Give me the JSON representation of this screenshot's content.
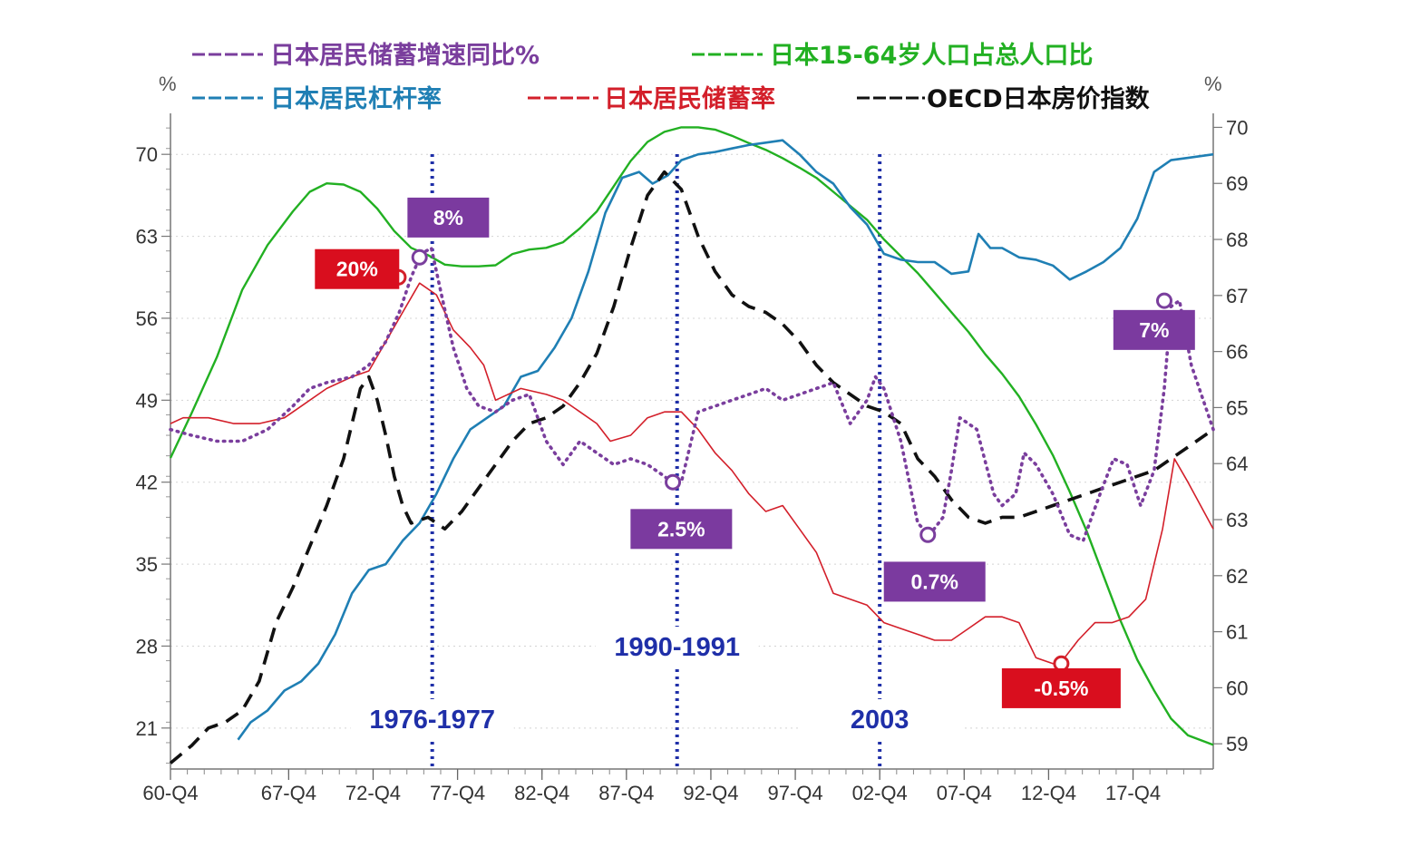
{
  "chart_data": {
    "type": "line",
    "title": "",
    "legend": [
      {
        "key": "savings_growth",
        "label": "日本居民储蓄增速同比%",
        "color": "#7a3e9d",
        "style": "dotted",
        "axis": "left"
      },
      {
        "key": "working_age",
        "label": "日本15-64岁人口占总人口比",
        "color": "#22b022",
        "style": "solid",
        "axis": "right"
      },
      {
        "key": "leverage",
        "label": "日本居民杠杆率",
        "color": "#1f7fb4",
        "style": "solid",
        "axis": "left"
      },
      {
        "key": "savings_rate",
        "label": "日本居民储蓄率",
        "color": "#d31f2a",
        "style": "solid",
        "axis": "left"
      },
      {
        "key": "house_price",
        "label": "OECD日本房价指数",
        "color": "#111111",
        "style": "dashed",
        "axis": "left"
      }
    ],
    "legend_placement": "top",
    "x_axis": {
      "start": 1960.75,
      "end": 2022.5,
      "tick_labels": [
        "60-Q4",
        "67-Q4",
        "72-Q4",
        "77-Q4",
        "82-Q4",
        "87-Q4",
        "92-Q4",
        "97-Q4",
        "02-Q4",
        "07-Q4",
        "12-Q4",
        "17-Q4"
      ],
      "tick_values": [
        1960.75,
        1967.75,
        1972.75,
        1977.75,
        1982.75,
        1987.75,
        1992.75,
        1997.75,
        2002.75,
        2007.75,
        2012.75,
        2017.75
      ]
    },
    "y_left": {
      "unit": "%",
      "ylim": [
        17.5,
        73.5
      ],
      "ticks": [
        21,
        28,
        35,
        42,
        49,
        56,
        63,
        70
      ]
    },
    "y_right": {
      "unit": "%",
      "ylim": [
        58.55,
        70.25
      ],
      "ticks": [
        59,
        60,
        61,
        62,
        63,
        64,
        65,
        66,
        67,
        68,
        69,
        70
      ]
    },
    "grid": "horizontal dotted",
    "series": [
      {
        "key": "working_age",
        "axis": "right",
        "x": [
          1960.75,
          1962,
          1963.5,
          1965,
          1966.5,
          1968,
          1969,
          1970,
          1971,
          1972,
          1973,
          1974,
          1975,
          1976,
          1977,
          1978,
          1979,
          1980,
          1981,
          1982,
          1983,
          1984,
          1985,
          1986,
          1987,
          1988,
          1989,
          1990,
          1991,
          1992,
          1993,
          1994,
          1995,
          1996,
          1997,
          1998,
          1999,
          2000,
          2001,
          2002,
          2003,
          2004,
          2005,
          2006,
          2007,
          2008,
          2009,
          2010,
          2011,
          2012,
          2013,
          2014,
          2015,
          2016,
          2017,
          2018,
          2019,
          2020,
          2021,
          2022.5
        ],
        "y": [
          64.1,
          64.9,
          65.9,
          67.1,
          67.9,
          68.5,
          68.85,
          69.0,
          68.98,
          68.85,
          68.55,
          68.15,
          67.85,
          67.72,
          67.55,
          67.52,
          67.52,
          67.54,
          67.74,
          67.82,
          67.85,
          67.95,
          68.2,
          68.5,
          68.95,
          69.4,
          69.74,
          69.92,
          70.0,
          70.0,
          69.96,
          69.85,
          69.72,
          69.6,
          69.45,
          69.28,
          69.1,
          68.85,
          68.6,
          68.35,
          68.0,
          67.7,
          67.4,
          67.05,
          66.7,
          66.35,
          65.95,
          65.6,
          65.2,
          64.7,
          64.15,
          63.5,
          62.8,
          62.0,
          61.2,
          60.5,
          59.95,
          59.45,
          59.15,
          58.98
        ]
      },
      {
        "key": "leverage",
        "axis": "left",
        "x": [
          1964.75,
          1965.5,
          1966.5,
          1967.5,
          1968.5,
          1969.5,
          1970.5,
          1971.5,
          1972.5,
          1973.5,
          1974.5,
          1975.5,
          1976.5,
          1977.5,
          1978.5,
          1979.5,
          1980.5,
          1981.5,
          1982.5,
          1983.5,
          1984.5,
          1985.5,
          1986.5,
          1987.5,
          1988.5,
          1989.3,
          1990.2,
          1991,
          1992,
          1993,
          1994,
          1995,
          1996,
          1997,
          1998,
          1999,
          2000,
          2001,
          2002,
          2003,
          2004,
          2005,
          2006,
          2007,
          2008,
          2008.6,
          2009.3,
          2010,
          2011,
          2012,
          2013,
          2014,
          2015,
          2016,
          2017,
          2018,
          2019,
          2020,
          2021,
          2022.5
        ],
        "y": [
          20.0,
          21.5,
          22.5,
          24.2,
          25.0,
          26.5,
          29.0,
          32.5,
          34.5,
          35.0,
          37.0,
          38.5,
          41.0,
          44.0,
          46.5,
          47.5,
          48.5,
          51.0,
          51.5,
          53.5,
          56.0,
          60.0,
          65.0,
          68.0,
          68.5,
          67.5,
          68.2,
          69.5,
          70.0,
          70.2,
          70.5,
          70.8,
          71.0,
          71.2,
          70.0,
          68.5,
          67.5,
          65.5,
          64.0,
          61.5,
          61.0,
          60.8,
          60.8,
          59.8,
          60.0,
          63.2,
          62.0,
          62.0,
          61.2,
          61.0,
          60.5,
          59.3,
          60.0,
          60.8,
          62.0,
          64.5,
          68.5,
          69.5,
          69.7,
          70.0
        ]
      },
      {
        "key": "savings_rate",
        "axis": "left",
        "x": [
          1960.75,
          1961.5,
          1963,
          1964.5,
          1966,
          1967.5,
          1968.5,
          1970,
          1971.5,
          1972.5,
          1973.5,
          1974.3,
          1975.5,
          1976.5,
          1977.5,
          1978.5,
          1979.3,
          1980,
          1981.5,
          1983,
          1984,
          1985,
          1986,
          1986.8,
          1988,
          1989,
          1990,
          1991,
          1992,
          1993,
          1994,
          1995,
          1996,
          1997,
          1998,
          1999,
          2000,
          2001,
          2002,
          2003,
          2004,
          2005,
          2006,
          2007,
          2008,
          2009,
          2010,
          2011,
          2012,
          2013,
          2013.7,
          2014.5,
          2015.5,
          2016.5,
          2017.5,
          2018.5,
          2019.5,
          2020.2,
          2021,
          2022.5
        ],
        "y": [
          47.0,
          47.5,
          47.5,
          47.0,
          47.0,
          47.5,
          48.5,
          50.0,
          51.0,
          51.5,
          54.0,
          56.0,
          59.0,
          58.0,
          55.0,
          53.5,
          52.0,
          49.0,
          50.0,
          49.5,
          49.0,
          48.0,
          47.0,
          45.5,
          46.0,
          47.5,
          48.0,
          48.0,
          46.5,
          44.5,
          43.0,
          41.0,
          39.5,
          40.0,
          38.0,
          36.0,
          32.5,
          32.0,
          31.5,
          30.0,
          29.5,
          29.0,
          28.5,
          28.5,
          29.5,
          30.5,
          30.5,
          30.0,
          27.0,
          26.5,
          27.0,
          28.5,
          30.0,
          30.0,
          30.5,
          32.0,
          38.0,
          44.0,
          42.0,
          38.0
        ]
      },
      {
        "key": "house_price",
        "axis": "left",
        "x": [
          1960.75,
          1962,
          1963,
          1964,
          1965,
          1966,
          1967,
          1968,
          1969,
          1970,
          1971,
          1971.5,
          1972,
          1972.5,
          1973,
          1973.5,
          1974,
          1974.5,
          1975,
          1976,
          1977,
          1978,
          1979,
          1980,
          1981,
          1982,
          1983,
          1984,
          1985,
          1986,
          1987,
          1988,
          1989,
          1990,
          1991,
          1992,
          1993,
          1994,
          1995,
          1996,
          1997,
          1998,
          1999,
          2000,
          2001,
          2002,
          2003,
          2004,
          2005,
          2006,
          2007,
          2008,
          2009,
          2010,
          2011,
          2012,
          2013,
          2014,
          2015,
          2016,
          2017,
          2018,
          2019,
          2020,
          2021,
          2022.5
        ],
        "y": [
          18.0,
          19.5,
          21.0,
          21.5,
          22.5,
          25.0,
          30.0,
          33.0,
          36.5,
          40.0,
          44.0,
          47.0,
          50.0,
          51.0,
          49.0,
          46.0,
          42.5,
          40.0,
          38.5,
          39.0,
          38.0,
          39.5,
          41.5,
          43.5,
          45.5,
          47.0,
          47.5,
          48.5,
          50.5,
          53.0,
          57.0,
          62.0,
          66.5,
          68.5,
          67.0,
          63.0,
          60.0,
          58.0,
          57.0,
          56.5,
          55.5,
          54.0,
          52.0,
          50.5,
          49.5,
          48.5,
          48.0,
          47.0,
          44.0,
          42.5,
          40.5,
          39.0,
          38.5,
          39.0,
          39.0,
          39.5,
          40.0,
          40.5,
          41.0,
          41.5,
          42.0,
          42.5,
          43.0,
          44.0,
          45.0,
          46.5
        ]
      },
      {
        "key": "savings_growth",
        "axis": "left",
        "x": [
          1960.75,
          1962,
          1963.5,
          1965,
          1966.5,
          1968,
          1969,
          1970,
          1971.5,
          1972.5,
          1973.5,
          1974.3,
          1975,
          1975.6,
          1976.2,
          1976.8,
          1977.5,
          1978.3,
          1979,
          1980,
          1981,
          1982,
          1983,
          1984,
          1985,
          1986,
          1987,
          1988,
          1989,
          1990,
          1990.4,
          1991,
          1992,
          1993,
          1994,
          1995,
          1996,
          1997,
          1998,
          1999,
          2000,
          2001,
          2002,
          2002.5,
          2003,
          2004,
          2005,
          2005.7,
          2006.5,
          2007,
          2007.5,
          2008.5,
          2009.5,
          2010,
          2010.8,
          2011.3,
          2012,
          2013,
          2014,
          2014.8,
          2015.8,
          2016.6,
          2017.4,
          2018.2,
          2019,
          2019.6,
          2020,
          2020.5,
          2021.2,
          2022.5
        ],
        "y": [
          46.5,
          46.0,
          45.5,
          45.5,
          46.5,
          48.5,
          50.0,
          50.5,
          51.0,
          52.0,
          54.0,
          56.5,
          59.5,
          61.5,
          62.0,
          58.0,
          53.5,
          50.0,
          48.5,
          48.0,
          49.0,
          49.5,
          45.5,
          43.5,
          45.5,
          44.5,
          43.5,
          44.0,
          43.5,
          42.5,
          42.0,
          42.0,
          48.0,
          48.5,
          49.0,
          49.5,
          50.0,
          49.0,
          49.5,
          50.0,
          50.5,
          47.0,
          49.0,
          51.0,
          50.0,
          45.5,
          38.5,
          37.5,
          39.0,
          43.0,
          47.5,
          46.5,
          41.0,
          40.0,
          41.0,
          44.5,
          43.5,
          41.0,
          37.5,
          37.0,
          41.0,
          44.0,
          43.5,
          40.0,
          43.0,
          50.0,
          57.0,
          57.5,
          52.0,
          46.5
        ]
      }
    ],
    "markers": [
      {
        "series": "savings_rate",
        "x": 1974.25,
        "y": 59.5
      },
      {
        "series": "savings_growth",
        "x": 1975.5,
        "y": 61.2
      },
      {
        "series": "savings_growth",
        "x": 1990.5,
        "y": 42.0
      },
      {
        "series": "savings_growth",
        "x": 2005.6,
        "y": 37.5
      },
      {
        "series": "savings_rate",
        "x": 2013.5,
        "y": 26.5
      },
      {
        "series": "savings_growth",
        "x": 2019.6,
        "y": 57.5
      }
    ],
    "annotations": [
      {
        "text": "20%",
        "color": "#d90e1e",
        "x": 1971.8,
        "y": 60.2
      },
      {
        "text": "8%",
        "color": "#7b3a9f",
        "x": 1977.2,
        "y": 64.6
      },
      {
        "text": "2.5%",
        "color": "#7b3a9f",
        "x": 1991.0,
        "y": 38.0
      },
      {
        "text": "0.7%",
        "color": "#7b3a9f",
        "x": 2006.0,
        "y": 33.5
      },
      {
        "text": "-0.5%",
        "color": "#d90e1e",
        "x": 2013.5,
        "y": 24.4
      },
      {
        "text": "7%",
        "color": "#7b3a9f",
        "x": 2019.0,
        "y": 55.0
      }
    ],
    "period_lines": [
      {
        "label": "1976-1977",
        "x": 1976.25
      },
      {
        "label": "1990-1991",
        "x": 1990.75
      },
      {
        "label": "2003",
        "x": 2002.75
      }
    ],
    "period_line_color": "#1f2fa8"
  }
}
